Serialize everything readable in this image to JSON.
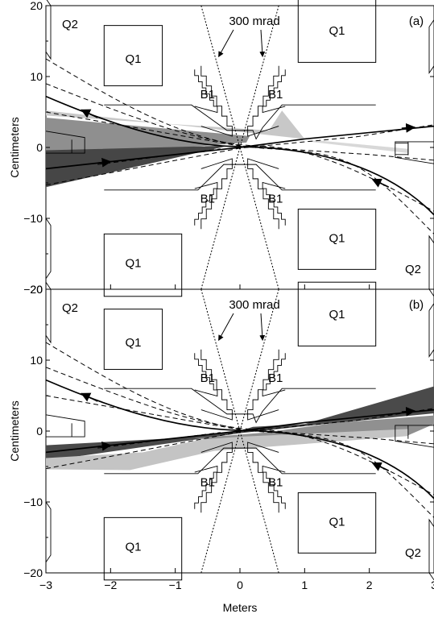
{
  "x_axis": {
    "label": "Meters",
    "ticks": [
      "−3",
      "−2",
      "−1",
      "0",
      "1",
      "2",
      "3"
    ]
  },
  "y_axis": {
    "label": "Centimeters",
    "ticks": [
      "20",
      "10",
      "0",
      "−10",
      "−20"
    ]
  },
  "panels": [
    {
      "tag": "(a)",
      "angle_label": "300 mrad",
      "labels": {
        "q2_top": "Q2",
        "q1_top_left": "Q1",
        "q1_top_right": "Q1",
        "b1_upper_left": "B1",
        "b1_upper_right": "B1",
        "b1_lower_left": "B1",
        "b1_lower_right": "B1",
        "q1_bottom_left": "Q1",
        "q1_bottom_right": "Q1",
        "q2_bottom": "Q2"
      }
    },
    {
      "tag": "(b)",
      "angle_label": "300 mrad",
      "labels": {
        "q2_top": "Q2",
        "q1_top_left": "Q1",
        "q1_top_right": "Q1",
        "b1_upper_left": "B1",
        "b1_upper_right": "B1",
        "b1_lower_left": "B1",
        "b1_lower_right": "B1",
        "q1_bottom_left": "Q1",
        "q1_bottom_right": "Q1",
        "q2_bottom": "Q2"
      }
    }
  ]
}
